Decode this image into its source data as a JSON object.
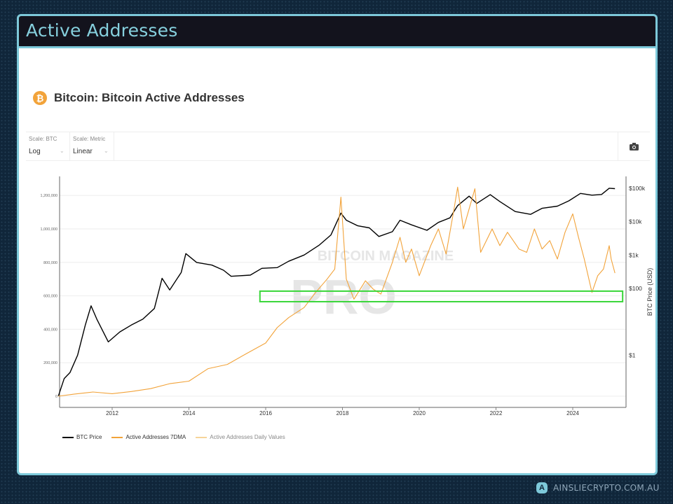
{
  "header": {
    "title": "Active Addresses"
  },
  "chart_header": {
    "title": "Bitcoin: Bitcoin Active Addresses",
    "icon": "bitcoin-icon",
    "icon_glyph": "₿"
  },
  "controls": [
    {
      "label": "Scale: BTC",
      "value": "Log"
    },
    {
      "label": "Scale: Metric",
      "value": "Linear"
    }
  ],
  "camera_icon": "camera-icon",
  "watermark": "BITCOIN MAGAZINE PRO",
  "footer": {
    "text": "AINSLIECRYPTO.COM.AU",
    "logo_glyph": "A"
  },
  "colors": {
    "accent": "#7dc9da",
    "btc_price": "#000000",
    "active_7dma": "#f2a33a",
    "daily": "#f7d49a",
    "highlight": "#39d639"
  },
  "chart_data": {
    "type": "line",
    "title": "Bitcoin: Bitcoin Active Addresses",
    "xlabel": "",
    "ylabel_left": "",
    "ylabel_right": "BTC Price (USD)",
    "x_ticks": [
      "2012",
      "2014",
      "2016",
      "2018",
      "2020",
      "2022",
      "2024"
    ],
    "y_left_ticks": [
      "0",
      "200,000",
      "400,000",
      "600,000",
      "800,000",
      "1,000,000",
      "1,200,000"
    ],
    "y_left_values": [
      0,
      200000,
      400000,
      600000,
      800000,
      1000000,
      1200000
    ],
    "y_right_ticks": [
      "$1",
      "$100",
      "$1k",
      "$10k",
      "$100k"
    ],
    "y_right_values": [
      1,
      100,
      1000,
      10000,
      100000
    ],
    "y_right_scale": "log",
    "xlim": [
      2010.6,
      2025.2
    ],
    "ylim_left": [
      0,
      1350000
    ],
    "grid": true,
    "legend_position": "bottom-left",
    "highlight_box": {
      "x": [
        2015.85,
        2025.3
      ],
      "y": [
        565000,
        628000
      ],
      "color": "#39d639"
    },
    "series": [
      {
        "name": "BTC Price",
        "axis": "right",
        "color": "#000000",
        "x": [
          2010.6,
          2010.75,
          2010.9,
          2011.1,
          2011.3,
          2011.45,
          2011.6,
          2011.9,
          2012.2,
          2012.5,
          2012.8,
          2013.1,
          2013.3,
          2013.5,
          2013.8,
          2013.92,
          2014.2,
          2014.6,
          2014.9,
          2015.1,
          2015.6,
          2015.9,
          2016.3,
          2016.6,
          2017.0,
          2017.4,
          2017.7,
          2017.96,
          2018.1,
          2018.4,
          2018.7,
          2018.95,
          2019.3,
          2019.5,
          2019.8,
          2020.2,
          2020.5,
          2020.8,
          2021.0,
          2021.3,
          2021.5,
          2021.85,
          2022.1,
          2022.5,
          2022.9,
          2023.2,
          2023.6,
          2023.9,
          2024.2,
          2024.5,
          2024.75,
          2024.95,
          2025.1
        ],
        "y": [
          0.06,
          0.2,
          0.3,
          1,
          8,
          30,
          12,
          2.5,
          5,
          8,
          12,
          25,
          200,
          90,
          300,
          1100,
          600,
          500,
          350,
          230,
          250,
          400,
          420,
          650,
          1000,
          2000,
          4000,
          18000,
          11000,
          7500,
          6500,
          3600,
          5000,
          11000,
          8000,
          5500,
          9500,
          13000,
          30000,
          58000,
          35000,
          64000,
          40000,
          20000,
          16500,
          25000,
          29000,
          42000,
          70000,
          62000,
          65000,
          100000,
          97000
        ]
      },
      {
        "name": "Active Addresses 7DMA",
        "axis": "left",
        "color": "#f2a33a",
        "x": [
          2010.6,
          2011.0,
          2011.5,
          2012.0,
          2012.5,
          2013.0,
          2013.5,
          2014.0,
          2014.5,
          2015.0,
          2015.5,
          2016.0,
          2016.3,
          2016.6,
          2017.0,
          2017.3,
          2017.6,
          2017.8,
          2017.96,
          2018.1,
          2018.3,
          2018.6,
          2018.8,
          2019.0,
          2019.3,
          2019.5,
          2019.65,
          2019.8,
          2020.0,
          2020.3,
          2020.5,
          2020.7,
          2020.9,
          2021.0,
          2021.15,
          2021.3,
          2021.45,
          2021.6,
          2021.9,
          2022.1,
          2022.3,
          2022.6,
          2022.8,
          2023.0,
          2023.2,
          2023.4,
          2023.6,
          2023.8,
          2024.0,
          2024.15,
          2024.3,
          2024.5,
          2024.65,
          2024.8,
          2024.95,
          2025.0,
          2025.1
        ],
        "y": [
          0,
          12000,
          25000,
          15000,
          28000,
          45000,
          75000,
          90000,
          165000,
          190000,
          255000,
          318000,
          410000,
          470000,
          530000,
          620000,
          700000,
          760000,
          1190000,
          700000,
          580000,
          690000,
          640000,
          610000,
          800000,
          950000,
          800000,
          880000,
          720000,
          900000,
          1000000,
          850000,
          1110000,
          1250000,
          1000000,
          1120000,
          1240000,
          860000,
          1000000,
          900000,
          980000,
          880000,
          860000,
          1000000,
          880000,
          930000,
          820000,
          980000,
          1090000,
          950000,
          820000,
          620000,
          720000,
          760000,
          900000,
          820000,
          736000
        ]
      },
      {
        "name": "Active Addresses Daily Values",
        "axis": "left",
        "color": "#f7d49a",
        "x": [],
        "y": []
      }
    ]
  }
}
